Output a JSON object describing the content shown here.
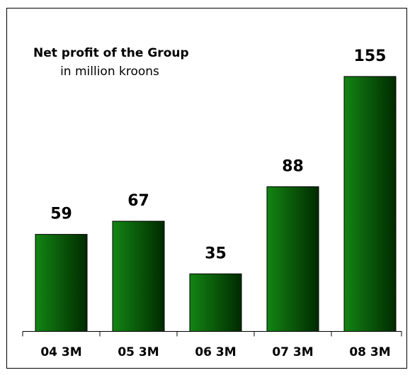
{
  "chart_data": {
    "type": "bar",
    "title": "Net profit of the Group",
    "subtitle": "in million kroons",
    "categories": [
      "04 3M",
      "05 3M",
      "06 3M",
      "07 3M",
      "08 3M"
    ],
    "values": [
      59,
      67,
      35,
      88,
      155
    ],
    "color": "#138513"
  }
}
